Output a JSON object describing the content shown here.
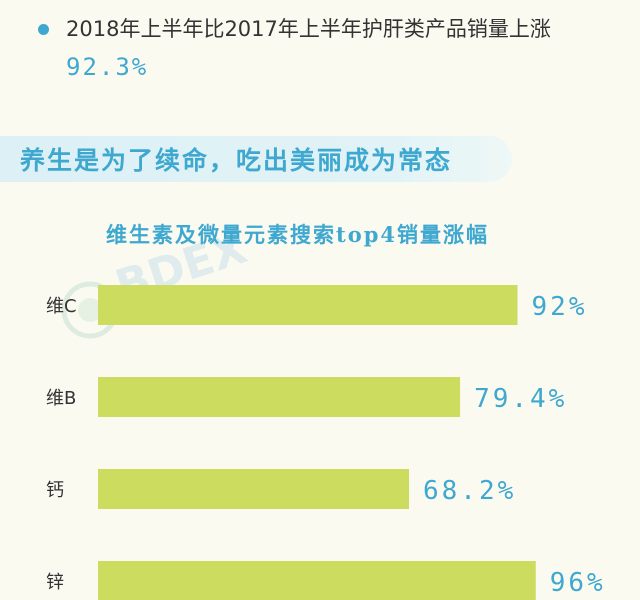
{
  "header": {
    "bullet_text": "2018年上半年比2017年上半年护肝类产品销量上涨",
    "bullet_value": "92.3%"
  },
  "banner": {
    "text": "养生是为了续命，吃出美丽成为常态"
  },
  "watermark": {
    "text": "BDEX"
  },
  "chart_data": {
    "type": "bar",
    "orientation": "horizontal",
    "title": "维生素及微量元素搜索top4销量涨幅",
    "categories": [
      "维C",
      "维B",
      "钙",
      "锌"
    ],
    "values": [
      92,
      79.4,
      68.2,
      96
    ],
    "value_labels": [
      "92%",
      "79.4%",
      "68.2%",
      "96%"
    ],
    "xlim": [
      0,
      100
    ],
    "grid": false,
    "legend": "none",
    "bar_color": "#cbdc5e",
    "label_color": "#3ea8d0"
  }
}
